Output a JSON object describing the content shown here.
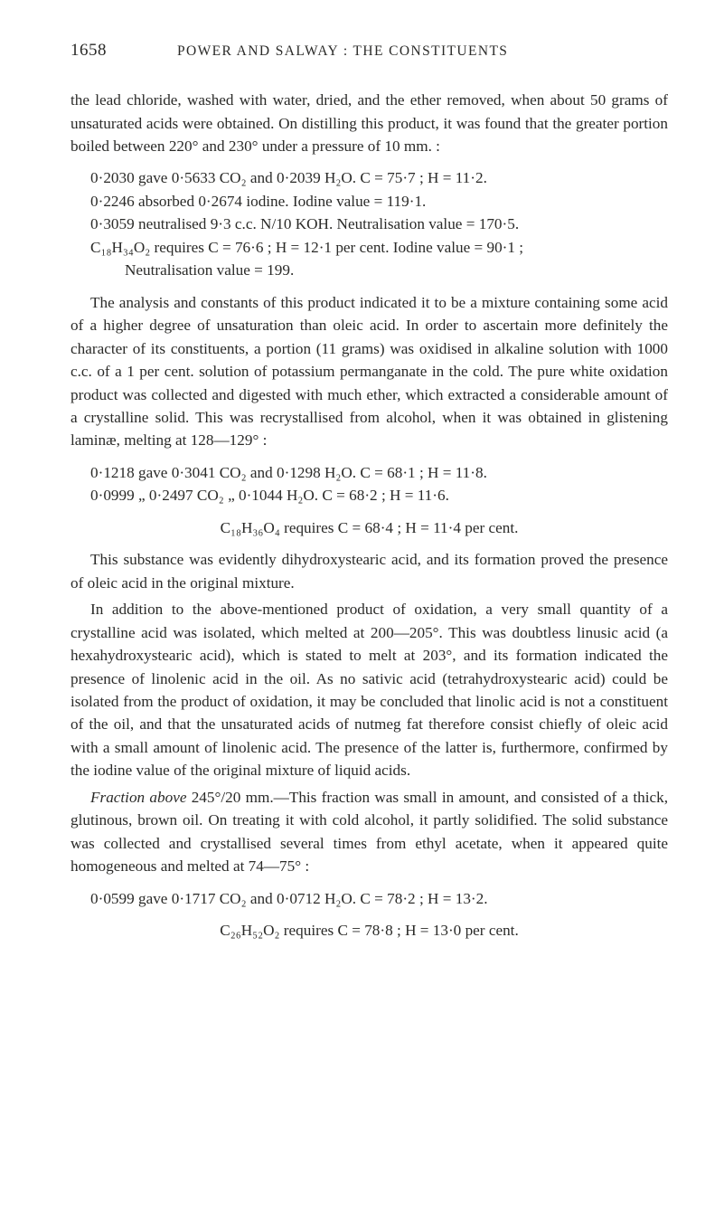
{
  "page_number": "1658",
  "running_title": "POWER AND SALWAY : THE CONSTITUENTS",
  "para1": "the lead chloride, washed with water, dried, and the ether removed, when about 50 grams of unsaturated acids were obtained. On distil­ling this product, it was found that the greater portion boiled between 220° and 230° under a pressure of 10 mm. :",
  "block1_l1": "0·2030 gave 0·5633 CO₂ and 0·2039 H₂O.  C = 75·7 ;  H = 11·2.",
  "block1_l2": "0·2246 absorbed 0·2674 iodine.   Iodine value = 119·1.",
  "block1_l3": "0·3059 neutralised 9·3 c.c. N/10 KOH.  Neutralisation value = 170·5.",
  "block1_l4": "C₁₈H₃₄O₂ requires C = 76·6 ; H = 12·1 per cent.  Iodine value = 90·1 ;",
  "block1_l5": "Neutralisation value = 199.",
  "para2": "The analysis and constants of this product indicated it to be a mixture containing some acid of a higher degree of unsaturation than oleic acid. In order to ascertain more definitely the character of its constituents, a portion (11 grams) was oxidised in alkaline solution with 1000 c.c. of a 1 per cent. solution of potassium permanganate in the cold. The pure white oxidation product was collected and digested with much ether, which extracted a considerable amount of a crystal­line solid. This was recrystallised from alcohol, when it was obtained in glistening laminæ, melting at 128—129° :",
  "block2_l1": "0·1218 gave 0·3041 CO₂ and 0·1298 H₂O.  C = 68·1 ;  H = 11·8.",
  "block2_l2": "0·0999  „  0·2497 CO₂  „  0·1044 H₂O.  C = 68·2 ;  H = 11·6.",
  "block2_eq": "C₁₈H₃₆O₄ requires C = 68·4 ; H = 11·4 per cent.",
  "para3": "This substance was evidently dihydroxystearic acid, and its forma­tion proved the presence of oleic acid in the original mixture.",
  "para4": "In addition to the above-mentioned product of oxidation, a very small quantity of a crystalline acid was isolated, which melted at 200—205°. This was doubtless linusic acid (a hexahydroxystearic acid), which is stated to melt at 203°, and its formation indicated the presence of linolenic acid in the oil. As no sativic acid (tetrahydroxy­stearic acid) could be isolated from the product of oxidation, it may be concluded that linolic acid is not a constituent of the oil, and that the unsaturated acids of nutmeg fat therefore consist chiefly of oleic acid with a small amount of linolenic acid. The presence of the latter is, furthermore, confirmed by the iodine value of the original mixture of liquid acids.",
  "para5_lead": "Fraction above",
  "para5_rest": " 245°/20 mm.—This fraction was small in amount, and consisted of a thick, glutinous, brown oil. On treating it with cold alcohol, it partly solidified. The solid substance was collected and crystallised several times from ethyl acetate, when it appeared quite homogeneous and melted at 74—75° :",
  "block3_l1": "0·0599 gave 0·1717 CO₂ and 0·0712 H₂O.  C = 78·2 ;  H = 13·2.",
  "block3_eq": "C₂₆H₅₂O₂ requires C = 78·8 ; H = 13·0 per cent."
}
